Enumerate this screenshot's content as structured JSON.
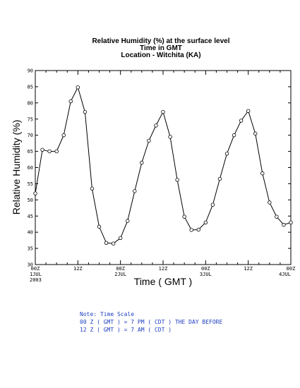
{
  "chart_data": {
    "type": "line",
    "title": [
      "Relative Humidity (%) at the surface level",
      "Time in GMT",
      "Location - Witchita (KA)"
    ],
    "xlabel": "Time ( GMT )",
    "ylabel": "Relative Humidity (%)",
    "ylim": [
      30,
      90
    ],
    "yticks": [
      30,
      35,
      40,
      45,
      50,
      55,
      60,
      65,
      70,
      75,
      80,
      85,
      90
    ],
    "xlim": [
      0,
      72
    ],
    "xticks": [
      {
        "x": 0,
        "lines": [
          "00Z",
          "1JUL",
          "2003"
        ]
      },
      {
        "x": 12,
        "lines": [
          "12Z"
        ]
      },
      {
        "x": 24,
        "lines": [
          "00Z",
          "2JUL"
        ]
      },
      {
        "x": 36,
        "lines": [
          "12Z"
        ]
      },
      {
        "x": 48,
        "lines": [
          "00Z",
          "3JUL"
        ]
      },
      {
        "x": 60,
        "lines": [
          "12Z"
        ]
      },
      {
        "x": 72,
        "lines": [
          "00Z",
          "4JUL"
        ]
      }
    ],
    "series": [
      {
        "x": [
          0,
          2,
          4,
          6,
          8,
          10,
          12,
          14,
          16,
          18,
          20,
          22,
          24,
          26,
          28,
          30,
          32,
          34,
          36,
          38,
          40,
          42,
          44,
          46,
          48,
          50,
          52,
          54,
          56,
          58,
          60,
          62,
          64,
          66,
          68,
          70,
          72
        ],
        "values": [
          52,
          65.5,
          65,
          65,
          70,
          80.5,
          84.8,
          77.2,
          53.5,
          41.7,
          36.7,
          36.5,
          38.2,
          43.5,
          52.7,
          61.5,
          68.3,
          73,
          77.2,
          69.5,
          56.2,
          44.8,
          40.7,
          40.8,
          43,
          48.5,
          56.5,
          64.3,
          70,
          74.5,
          77.5,
          70.5,
          58.2,
          49.2,
          44.8,
          42.3,
          43
        ]
      }
    ]
  },
  "notes": [
    "Note: Time Scale",
    "00 Z ( GMT ) = 7 PM ( CDT ) THE DAY BEFORE",
    "12 Z ( GMT ) = 7 AM ( CDT )"
  ],
  "colors": {
    "line": "#000000",
    "note_text": "#1f3fbf"
  }
}
